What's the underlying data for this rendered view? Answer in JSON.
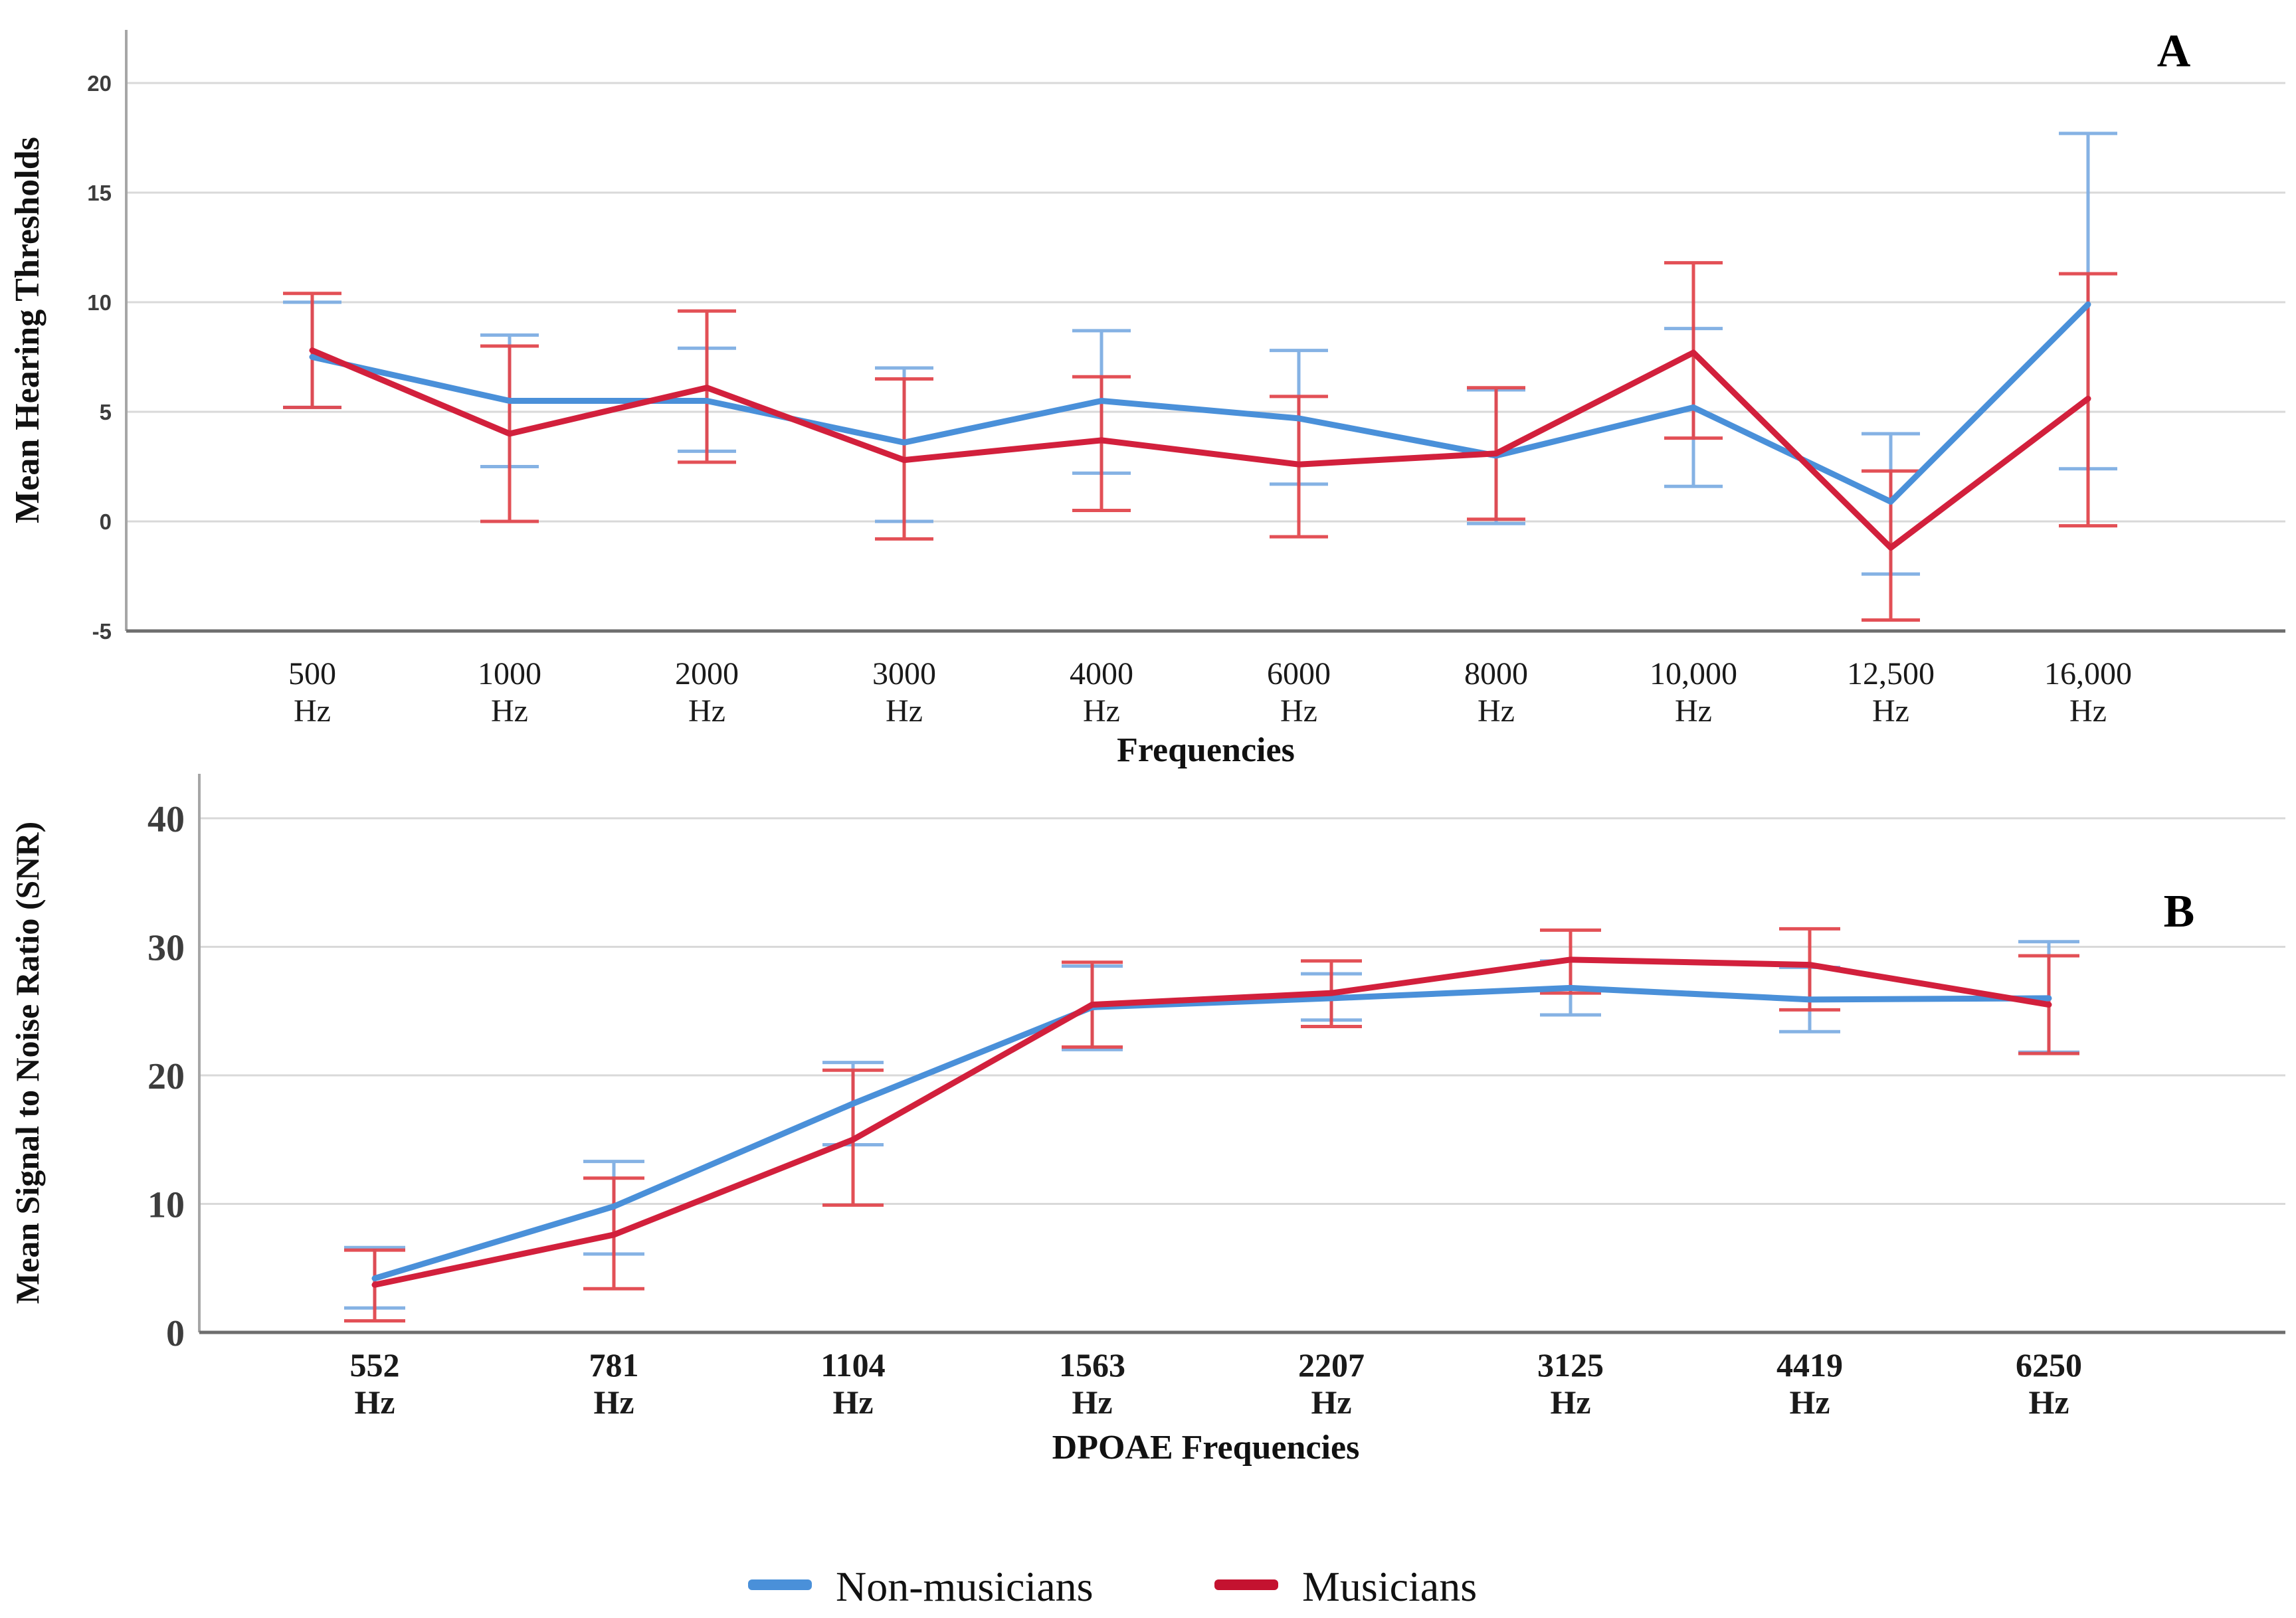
{
  "figure": {
    "background": "#ffffff",
    "legend": {
      "items": [
        {
          "label": "Non-musicians",
          "color": "#4A90D9"
        },
        {
          "label": "Musicians",
          "color": "#C41230"
        }
      ]
    },
    "colors": {
      "gridline": "#D9D9D9",
      "spine": "#A6A6A6",
      "baseline": "#6E6E6E",
      "tick_text": "#3D3D3D",
      "title_text": "#111111",
      "panel_letter": "#000000"
    }
  },
  "chart_data": [
    {
      "type": "line",
      "panel_label": "A",
      "xlabel": "Frequencies",
      "ylabel": "Mean Hearing Thresholds",
      "x_unit_line": "Hz",
      "categories": [
        "500",
        "1000",
        "2000",
        "3000",
        "4000",
        "6000",
        "8000",
        "10,000",
        "12,500",
        "16,000"
      ],
      "ylim": [
        -5,
        22.4
      ],
      "yticks": [
        20,
        15,
        10,
        5,
        0,
        -5
      ],
      "grid": true,
      "legend_position": "figure-bottom",
      "series": [
        {
          "name": "Non-musicians",
          "color": "#4A90D9",
          "error_color": "#7FAEE3",
          "values": [
            7.5,
            5.5,
            5.5,
            3.6,
            5.5,
            4.7,
            3.0,
            5.2,
            0.9,
            9.9
          ],
          "err_low": [
            5.2,
            2.5,
            3.2,
            0.0,
            2.2,
            1.7,
            -0.1,
            1.6,
            -2.4,
            2.4
          ],
          "err_high": [
            10.0,
            8.5,
            7.9,
            7.0,
            8.7,
            7.8,
            6.0,
            8.8,
            4.0,
            17.7
          ]
        },
        {
          "name": "Musicians",
          "color": "#D2203C",
          "error_color": "#E2474E",
          "values": [
            7.8,
            4.0,
            6.1,
            2.8,
            3.7,
            2.6,
            3.1,
            7.7,
            -1.2,
            5.6
          ],
          "err_low": [
            5.2,
            0.0,
            2.7,
            -0.8,
            0.5,
            -0.7,
            0.1,
            3.8,
            -4.5,
            -0.2
          ],
          "err_high": [
            10.4,
            8.0,
            9.6,
            6.5,
            6.6,
            5.7,
            6.1,
            11.8,
            2.3,
            11.3
          ]
        }
      ]
    },
    {
      "type": "line",
      "panel_label": "B",
      "xlabel": "DPOAE Frequencies",
      "ylabel": "Mean Signal to Noise Ratio (SNR)",
      "x_unit_line": "Hz",
      "categories": [
        "552",
        "781",
        "1104",
        "1563",
        "2207",
        "3125",
        "4419",
        "6250"
      ],
      "ylim": [
        0,
        43.5
      ],
      "yticks": [
        40,
        30,
        20,
        10,
        0
      ],
      "grid": true,
      "legend_position": "figure-bottom",
      "series": [
        {
          "name": "Non-musicians",
          "color": "#4A90D9",
          "error_color": "#7FAEE3",
          "values": [
            4.2,
            9.8,
            17.8,
            25.3,
            26.0,
            26.8,
            25.9,
            26.0
          ],
          "err_low": [
            1.9,
            6.1,
            14.6,
            22.0,
            24.3,
            24.7,
            23.4,
            21.8
          ],
          "err_high": [
            6.6,
            13.3,
            21.0,
            28.5,
            27.9,
            28.9,
            28.4,
            30.4
          ]
        },
        {
          "name": "Musicians",
          "color": "#D2203C",
          "error_color": "#E2474E",
          "values": [
            3.7,
            7.6,
            15.0,
            25.5,
            26.4,
            29.0,
            28.6,
            25.5
          ],
          "err_low": [
            0.9,
            3.4,
            9.9,
            22.2,
            23.8,
            26.4,
            25.1,
            21.7
          ],
          "err_high": [
            6.4,
            12.0,
            20.4,
            28.8,
            28.9,
            31.3,
            31.4,
            29.3
          ]
        }
      ]
    }
  ]
}
